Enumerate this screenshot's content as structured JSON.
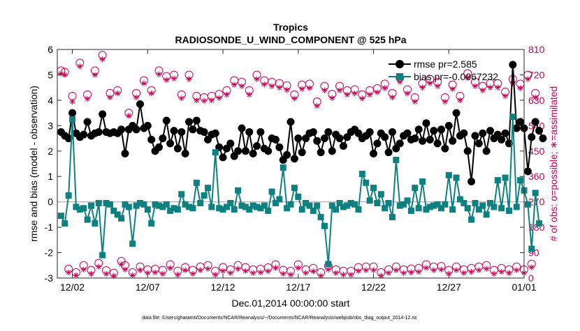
{
  "chart_data": {
    "type": "line",
    "title": "Tropics",
    "subtitle": "RADIOSONDE_U_WIND_COMPONENT @ 525 hPa",
    "xlabel": "Dec.01,2014 00:00:00 start",
    "ylabel_left": "rmse and bias (model - observation)",
    "ylabel_right": "# of obs: o=possible; ∗=assimilated",
    "footnote": "data file: /Users/gharamti/Documents/NCAR/Reanalysis/~/Documents/NCAR/Reanalysis/webpub/obs_diag_output_2014-12.nc",
    "x_range": [
      0,
      31
    ],
    "x_ticks": [
      1,
      6,
      11,
      16,
      21,
      26,
      31
    ],
    "x_tick_labels": [
      "12/02",
      "12/07",
      "12/12",
      "12/17",
      "12/22",
      "12/27",
      "01/01"
    ],
    "ylim_left": [
      -3,
      6
    ],
    "y_ticks_left": [
      -3,
      -2,
      -1,
      0,
      1,
      2,
      3,
      4,
      5,
      6
    ],
    "ylim_right": [
      0,
      810
    ],
    "y_ticks_right": [
      0,
      90,
      180,
      270,
      360,
      450,
      540,
      630,
      720,
      810
    ],
    "legend": {
      "position": "top-right",
      "entries": [
        {
          "label": "rmse pr=2.585",
          "series": "rmse"
        },
        {
          "label": "bias pr=-0.0067232",
          "series": "bias"
        }
      ]
    },
    "colors": {
      "rmse": "#000000",
      "bias": "#0f8080",
      "obs": "#cc0055",
      "zero_line": "#b8b8b8"
    },
    "series": [
      {
        "name": "rmse",
        "values": [
          2.75,
          2.6,
          2.5,
          3.5,
          2.7,
          2.55,
          2.65,
          3.15,
          2.6,
          2.7,
          2.75,
          3.45,
          2.75,
          2.7,
          2.75,
          2.7,
          2.85,
          1.9,
          2.85,
          3.0,
          2.85,
          3.85,
          2.9,
          3.0,
          2.45,
          2.0,
          2.15,
          2.5,
          3.2,
          2.3,
          2.8,
          2.1,
          2.75,
          1.9,
          3.15,
          2.85,
          3.2,
          2.8,
          2.75,
          2.45,
          2.65,
          2.7,
          2.15,
          1.75,
          2.1,
          2.3,
          1.8,
          2.0,
          2.9,
          2.0,
          2.75,
          1.9,
          2.2,
          2.75,
          2.1,
          2.0,
          2.5,
          2.45,
          2.15,
          1.65,
          1.85,
          3.15,
          1.7,
          2.5,
          1.95,
          2.5,
          2.7,
          2.75,
          2.4,
          1.95,
          2.5,
          2.75,
          2.0,
          2.65,
          2.5,
          2.2,
          2.55,
          2.75,
          2.85,
          2.7,
          2.5,
          2.6,
          2.75,
          1.9,
          2.3,
          2.7,
          2.55,
          1.95,
          2.75,
          2.1,
          2.3,
          2.6,
          2.7,
          2.45,
          2.5,
          2.85,
          2.4,
          3.1,
          2.45,
          2.8,
          2.3,
          2.85,
          2.1,
          3.0,
          2.4,
          3.5,
          2.6,
          2.7,
          2.0,
          0.8,
          2.6,
          2.3,
          2.7,
          2.0,
          2.8,
          2.5,
          2.65,
          2.45,
          2.7,
          2.3,
          5.4,
          2.9,
          3.15,
          2.9,
          1.2,
          2.55,
          3.15,
          2.8,
          2.5
        ],
        "y_axis": "left"
      },
      {
        "name": "bias",
        "values": [
          -0.55,
          -0.85,
          0.25,
          3.25,
          -0.2,
          -0.3,
          -0.25,
          -0.7,
          -0.15,
          -0.85,
          -0.05,
          -2.1,
          -0.05,
          -0.1,
          -0.35,
          -0.5,
          -0.65,
          -0.1,
          -0.2,
          -1.65,
          -0.15,
          -0.05,
          -0.1,
          -0.3,
          -0.85,
          -0.1,
          -0.15,
          -0.2,
          -0.1,
          -0.35,
          -0.25,
          -0.3,
          0.3,
          -0.1,
          -0.2,
          -0.25,
          0.75,
          -0.05,
          0.25,
          0.55,
          -0.2,
          1.95,
          -0.25,
          -0.3,
          -0.2,
          -0.05,
          -0.3,
          0.45,
          -0.15,
          -0.2,
          -0.3,
          -0.15,
          -0.2,
          -0.25,
          -0.15,
          -0.35,
          0.4,
          -0.05,
          0.1,
          1.35,
          -0.25,
          -0.1,
          0.55,
          0.2,
          -0.3,
          -0.05,
          -0.15,
          -0.35,
          -0.15,
          -0.6,
          -0.95,
          -2.45,
          -0.15,
          -0.3,
          -0.05,
          -0.2,
          -0.15,
          -0.05,
          -0.1,
          -0.3,
          1.1,
          0.75,
          0.05,
          0.55,
          -0.05,
          0.3,
          -0.25,
          -0.05,
          -0.6,
          1.65,
          -0.15,
          -0.1,
          0.05,
          -0.35,
          0.55,
          -0.25,
          0.8,
          -0.3,
          -0.2,
          -0.15,
          -0.1,
          -0.25,
          -0.1,
          1.05,
          -0.3,
          0.95,
          0.1,
          -0.05,
          -0.25,
          -0.7,
          -0.05,
          -0.3,
          -0.15,
          -0.5,
          -0.05,
          -0.2,
          0.85,
          -0.25,
          0.95,
          -0.35,
          3.35,
          -0.2,
          0.85,
          0.45,
          -0.1,
          -1.85,
          0.35,
          -0.85
        ],
        "y_axis": "left"
      },
      {
        "name": "possible",
        "values": [
          735,
          730,
          32,
          645,
          20,
          762,
          45,
          650,
          28,
          735,
          53,
          790,
          27,
          655,
          18,
          665,
          60,
          45,
          585,
          20,
          655,
          40,
          700,
          30,
          665,
          32,
          735,
          28,
          715,
          48,
          720,
          25,
          650,
          38,
          720,
          28,
          645,
          40,
          640,
          45,
          645,
          25,
          652,
          38,
          665,
          30,
          700,
          45,
          695,
          38,
          665,
          30,
          720,
          32,
          700,
          37,
          695,
          48,
          690,
          28,
          682,
          25,
          650,
          48,
          685,
          30,
          688,
          35,
          625,
          20,
          680,
          43,
          652,
          30,
          680,
          25,
          665,
          25,
          668,
          38,
          650,
          40,
          665,
          40,
          672,
          20,
          688,
          30,
          655,
          40,
          710,
          30,
          668,
          33,
          640,
          35,
          690,
          48,
          705,
          40,
          695,
          42,
          640,
          28,
          685,
          40,
          645,
          30,
          725,
          35,
          695,
          40,
          680,
          45,
          690,
          28,
          690,
          35,
          660,
          30,
          705,
          40,
          688,
          30,
          720,
          50,
          655
        ],
        "y_axis": "right",
        "marker": "circle"
      },
      {
        "name": "assimilated",
        "values": [
          725,
          720,
          20,
          625,
          10,
          750,
          30,
          635,
          15,
          720,
          40,
          775,
          15,
          640,
          8,
          655,
          48,
          30,
          575,
          10,
          640,
          28,
          690,
          18,
          655,
          20,
          722,
          15,
          702,
          35,
          707,
          12,
          637,
          28,
          705,
          15,
          630,
          28,
          628,
          33,
          630,
          12,
          638,
          25,
          650,
          18,
          685,
          33,
          680,
          25,
          650,
          18,
          705,
          20,
          686,
          24,
          680,
          36,
          675,
          15,
          667,
          12,
          636,
          36,
          670,
          18,
          673,
          24,
          610,
          8,
          665,
          30,
          638,
          18,
          665,
          12,
          650,
          12,
          654,
          25,
          636,
          28,
          650,
          28,
          658,
          8,
          673,
          18,
          640,
          28,
          695,
          18,
          654,
          20,
          625,
          22,
          675,
          36,
          690,
          28,
          680,
          30,
          625,
          15,
          670,
          28,
          630,
          18,
          710,
          22,
          680,
          28,
          665,
          33,
          675,
          15,
          675,
          22,
          645,
          18,
          690,
          28,
          673,
          18,
          705,
          38,
          640
        ],
        "y_axis": "right",
        "marker": "asterisk"
      }
    ]
  }
}
